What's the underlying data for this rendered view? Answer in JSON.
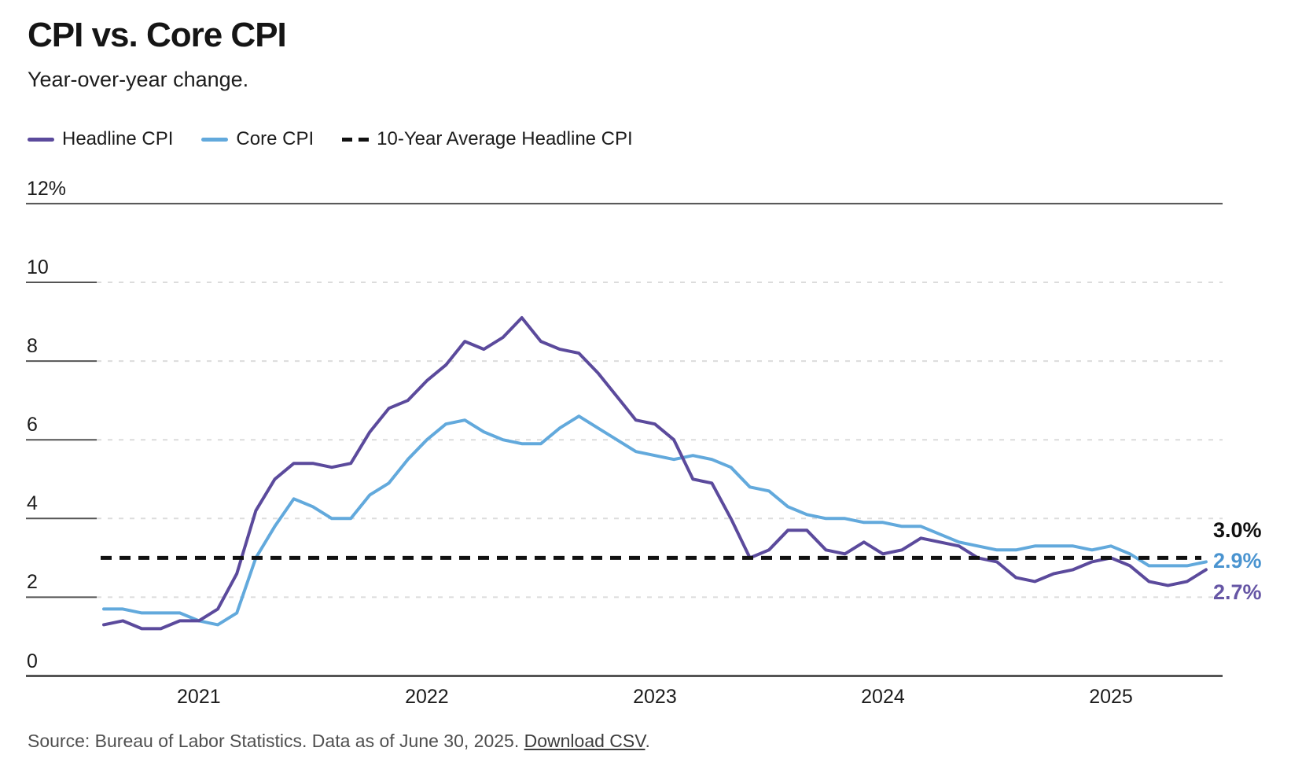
{
  "header": {
    "title": "CPI vs. Core CPI",
    "subtitle": "Year-over-year change."
  },
  "legend": {
    "items": [
      {
        "label": "Headline CPI",
        "color": "#5b4a9c",
        "style": "solid"
      },
      {
        "label": "Core CPI",
        "color": "#62a9dc",
        "style": "solid"
      },
      {
        "label": "10-Year Average Headline CPI",
        "color": "#111111",
        "style": "dashed"
      }
    ]
  },
  "chart_data": {
    "type": "line",
    "title": "CPI vs. Core CPI",
    "subtitle": "Year-over-year change.",
    "x_unit": "month",
    "grid": "horizontal-dashed",
    "legend_position": "top-left",
    "ylim": [
      0,
      12
    ],
    "x": [
      "2020-08",
      "2020-09",
      "2020-10",
      "2020-11",
      "2020-12",
      "2021-01",
      "2021-02",
      "2021-03",
      "2021-04",
      "2021-05",
      "2021-06",
      "2021-07",
      "2021-08",
      "2021-09",
      "2021-10",
      "2021-11",
      "2021-12",
      "2022-01",
      "2022-02",
      "2022-03",
      "2022-04",
      "2022-05",
      "2022-06",
      "2022-07",
      "2022-08",
      "2022-09",
      "2022-10",
      "2022-11",
      "2022-12",
      "2023-01",
      "2023-02",
      "2023-03",
      "2023-04",
      "2023-05",
      "2023-06",
      "2023-07",
      "2023-08",
      "2023-09",
      "2023-10",
      "2023-11",
      "2023-12",
      "2024-01",
      "2024-02",
      "2024-03",
      "2024-04",
      "2024-05",
      "2024-06",
      "2024-07",
      "2024-08",
      "2024-09",
      "2024-10",
      "2024-11",
      "2024-12",
      "2025-01",
      "2025-02",
      "2025-03",
      "2025-04",
      "2025-05",
      "2025-06"
    ],
    "series": [
      {
        "name": "Headline CPI",
        "color": "#5b4a9c",
        "values": [
          1.3,
          1.4,
          1.2,
          1.2,
          1.4,
          1.4,
          1.7,
          2.6,
          4.2,
          5.0,
          5.4,
          5.4,
          5.3,
          5.4,
          6.2,
          6.8,
          7.0,
          7.5,
          7.9,
          8.5,
          8.3,
          8.6,
          9.1,
          8.5,
          8.3,
          8.2,
          7.7,
          7.1,
          6.5,
          6.4,
          6.0,
          5.0,
          4.9,
          4.0,
          3.0,
          3.2,
          3.7,
          3.7,
          3.2,
          3.1,
          3.4,
          3.1,
          3.2,
          3.5,
          3.4,
          3.3,
          3.0,
          2.9,
          2.5,
          2.4,
          2.6,
          2.7,
          2.9,
          3.0,
          2.8,
          2.4,
          2.3,
          2.4,
          2.7
        ]
      },
      {
        "name": "Core CPI",
        "color": "#62a9dc",
        "values": [
          1.7,
          1.7,
          1.6,
          1.6,
          1.6,
          1.4,
          1.3,
          1.6,
          3.0,
          3.8,
          4.5,
          4.3,
          4.0,
          4.0,
          4.6,
          4.9,
          5.5,
          6.0,
          6.4,
          6.5,
          6.2,
          6.0,
          5.9,
          5.9,
          6.3,
          6.6,
          6.3,
          6.0,
          5.7,
          5.6,
          5.5,
          5.6,
          5.5,
          5.3,
          4.8,
          4.7,
          4.3,
          4.1,
          4.0,
          4.0,
          3.9,
          3.9,
          3.8,
          3.8,
          3.6,
          3.4,
          3.3,
          3.2,
          3.2,
          3.3,
          3.3,
          3.3,
          3.2,
          3.3,
          3.1,
          2.8,
          2.8,
          2.8,
          2.9
        ]
      }
    ],
    "reference_line": {
      "name": "10-Year Average Headline CPI",
      "value": 3.0,
      "label": "3.0%",
      "color": "#111111",
      "style": "dashed"
    },
    "end_labels": {
      "average": "3.0%",
      "core": "2.9%",
      "headline": "2.7%"
    },
    "y_ticks": [
      {
        "label": "12%",
        "value": 12
      },
      {
        "label": "10",
        "value": 10
      },
      {
        "label": "8",
        "value": 8
      },
      {
        "label": "6",
        "value": 6
      },
      {
        "label": "4",
        "value": 4
      },
      {
        "label": "2",
        "value": 2
      },
      {
        "label": "0",
        "value": 0
      }
    ],
    "x_ticks": [
      {
        "label": "2021"
      },
      {
        "label": "2022"
      },
      {
        "label": "2023"
      },
      {
        "label": "2024"
      },
      {
        "label": "2025"
      }
    ]
  },
  "source": {
    "prefix": "Source: Bureau of Labor Statistics. Data as of June 30, 2025. ",
    "link_label": "Download CSV",
    "suffix": "."
  }
}
